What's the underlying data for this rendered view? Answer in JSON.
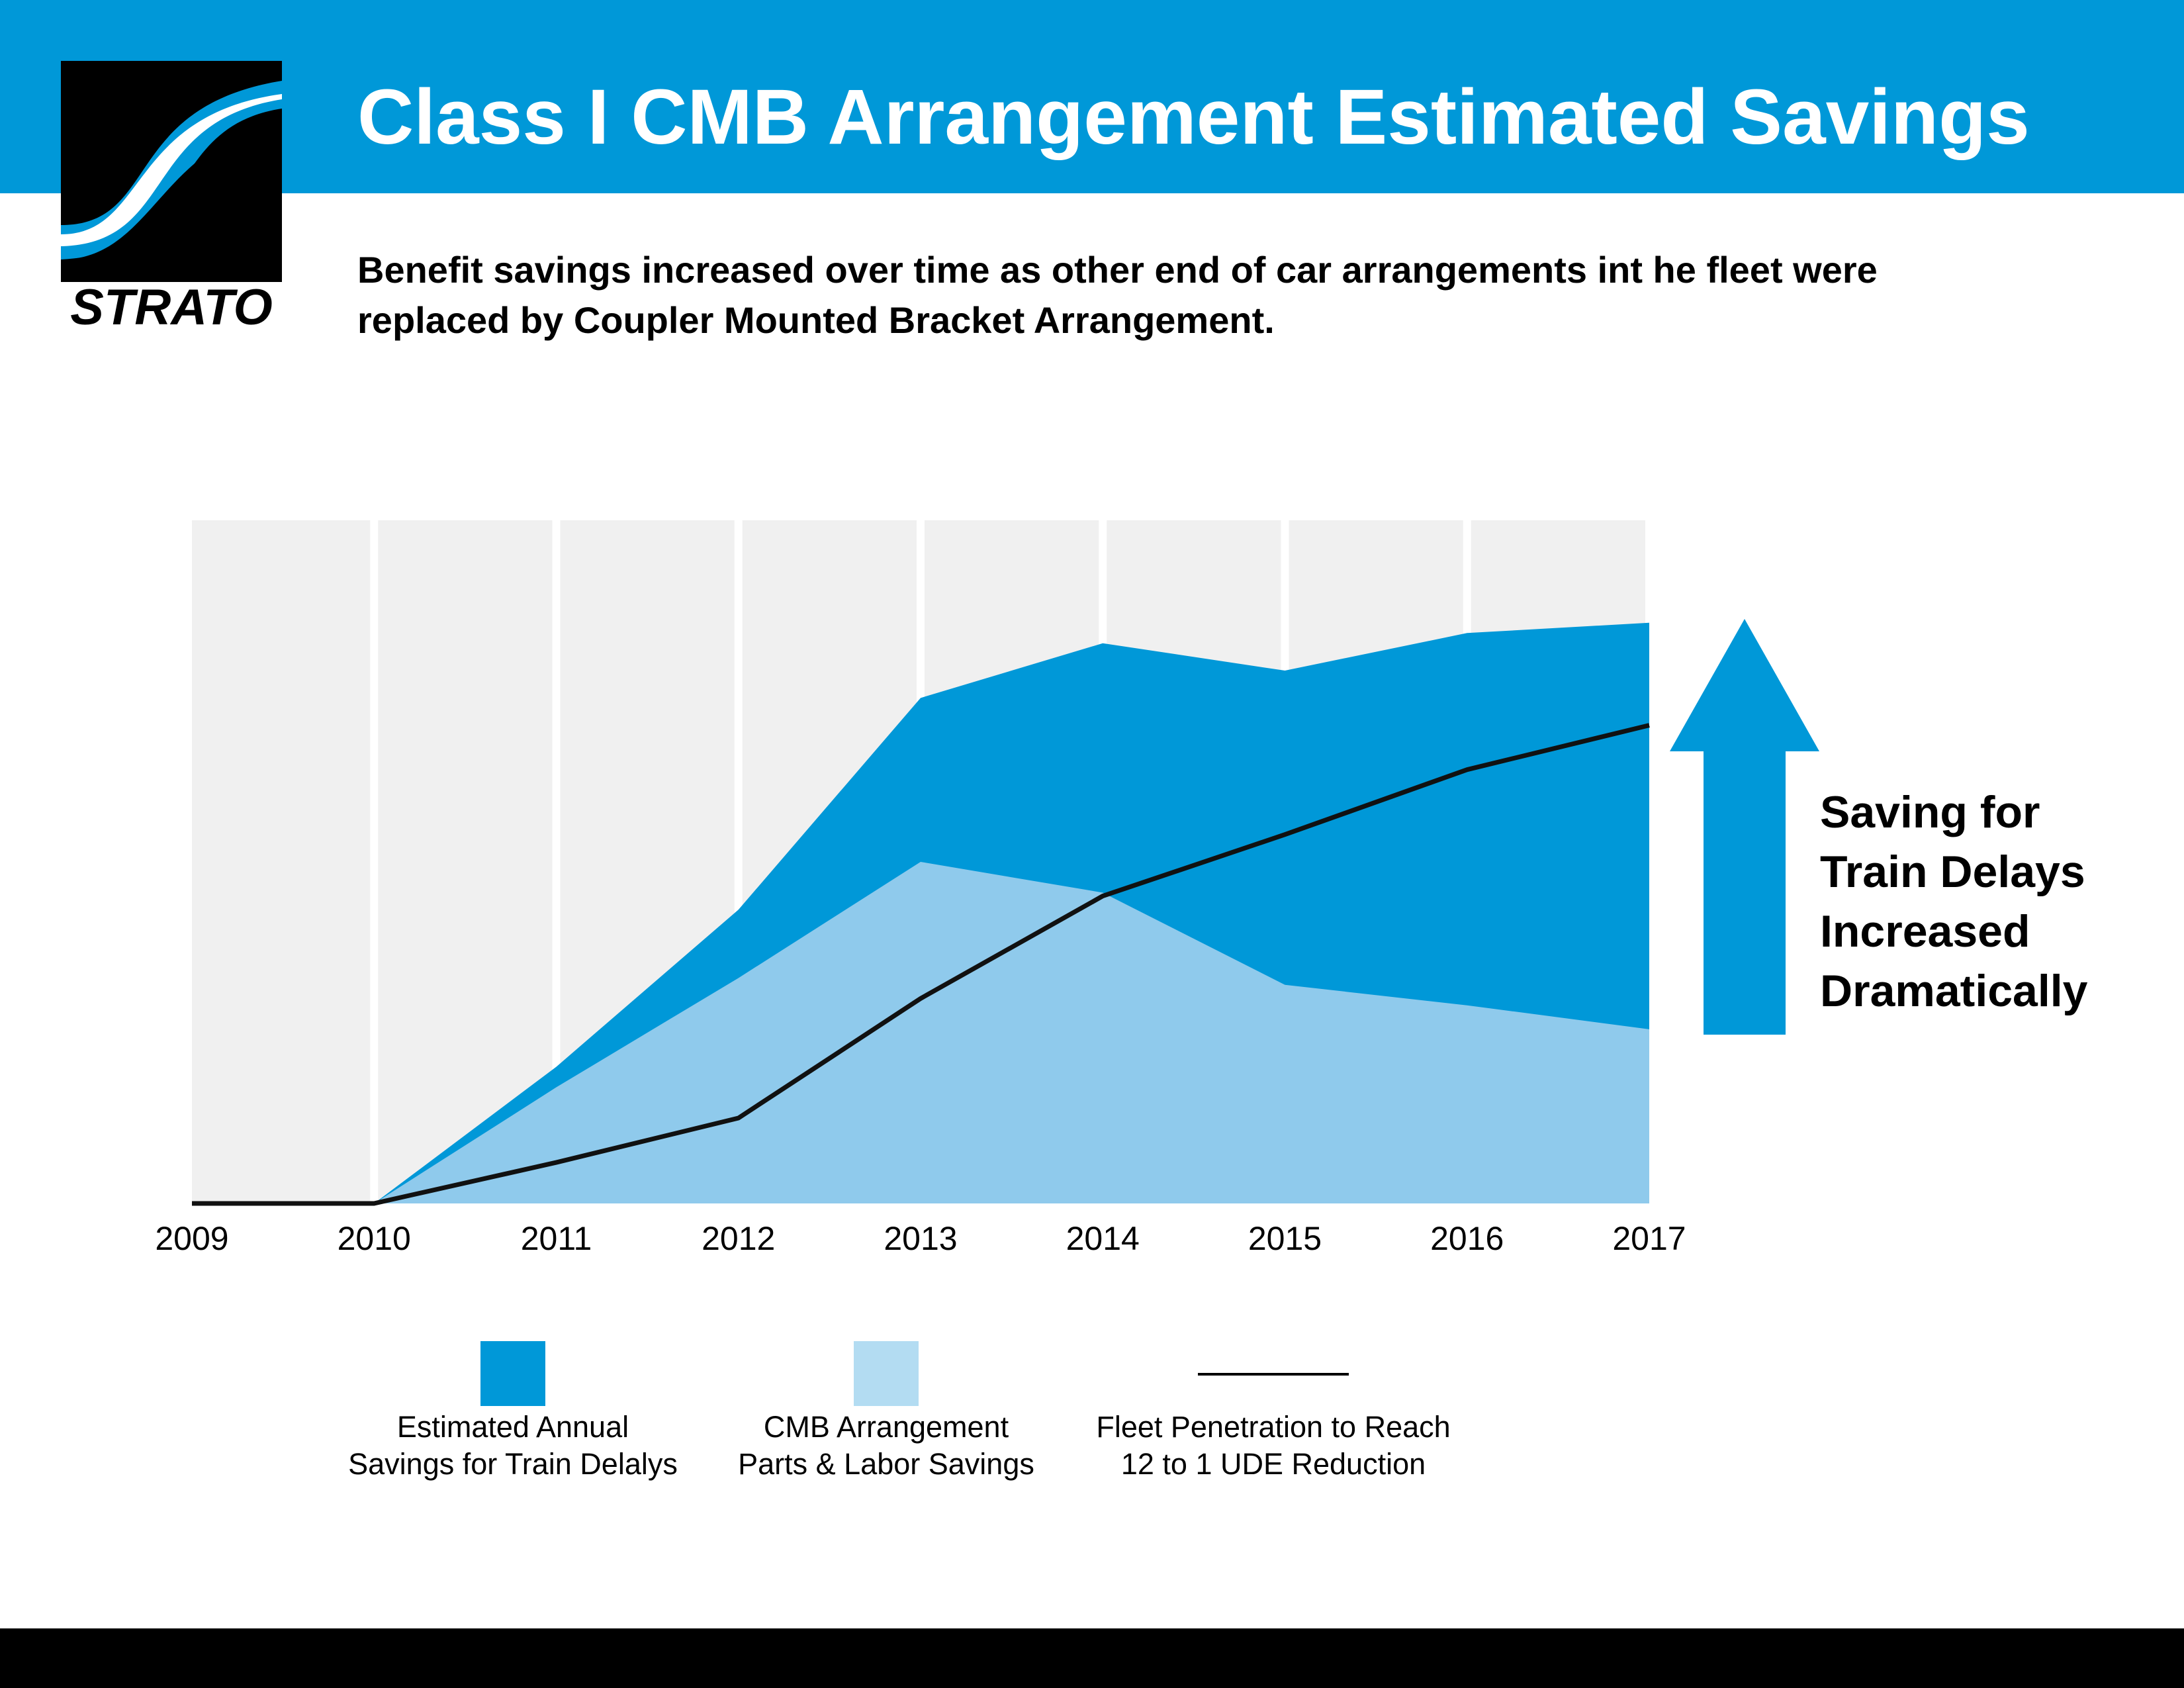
{
  "header": {
    "title": "Class I CMB Arrangement Estimated Savings",
    "logo_text": "STRATO"
  },
  "subtitle": {
    "line1": "Benefit savings increased over time as other end of car arrangements int he fleet were",
    "line2": "replaced by Coupler Mounted Bracket Arrangement."
  },
  "callout": {
    "lines": [
      "Saving for",
      "Train Delays",
      "Increased",
      "Dramatically"
    ]
  },
  "colors": {
    "brand_blue": "#0098d8",
    "light_blue": "#8fcaec",
    "legend_light_blue": "#b3dcf2",
    "grid_band": "#f0f0f0",
    "line": "#111111"
  },
  "chart_data": {
    "type": "area",
    "x": [
      "2009",
      "2010",
      "2011",
      "2012",
      "2013",
      "2014",
      "2015",
      "2016",
      "2017"
    ],
    "series": [
      {
        "name": "Estimated Annual Savings for Train Delalys",
        "type": "area",
        "stacked_total": [
          0,
          0,
          20,
          43,
          74,
          82,
          78,
          83.5,
          85
        ]
      },
      {
        "name": "CMB Arrangement Parts & Labor Savings",
        "type": "area",
        "values": [
          0,
          0,
          17,
          33,
          50,
          45.5,
          32,
          29,
          25.5
        ]
      },
      {
        "name": "Fleet Penetration to Reach 12 to 1 UDE Reduction",
        "type": "line",
        "values": [
          0,
          0,
          6,
          12.5,
          30,
          45,
          54,
          63.5,
          70
        ]
      }
    ],
    "ylim": [
      0,
      100
    ],
    "grid": "vertical bands",
    "legend": "bottom"
  },
  "legend": [
    {
      "line1": "Estimated Annual",
      "line2": "Savings for Train Delalys"
    },
    {
      "line1": "CMB Arrangement",
      "line2": "Parts & Labor Savings"
    },
    {
      "line1": "Fleet Penetration to Reach",
      "line2": "12 to 1 UDE Reduction"
    }
  ]
}
